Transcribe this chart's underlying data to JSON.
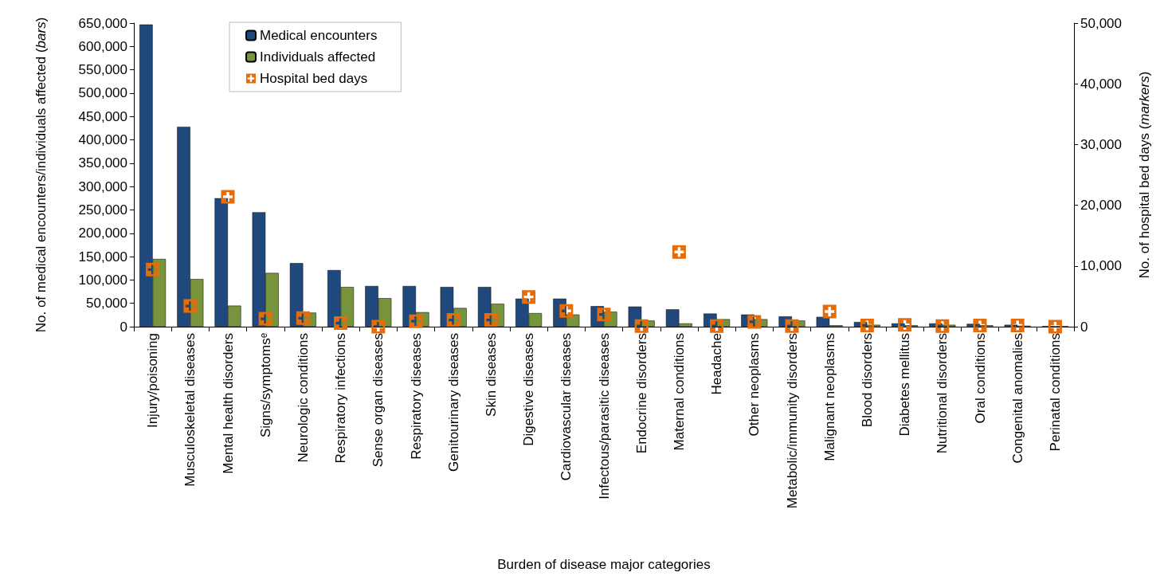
{
  "chart_data": {
    "type": "bar",
    "xlabel": "Burden of disease major categories",
    "ylabel": "No. of medical encounters/individuals affected (bars)",
    "y2label": "No. of hospital bed days (markers)",
    "categories": [
      "Injury/poisoning",
      "Musculoskeletal diseases",
      "Mental health disorders",
      "Signs/symptomsᵉ",
      "Neurologic conditions",
      "Respiratory infections",
      "Sense organ diseases",
      "Respiratory diseases",
      "Genitourinary diseases",
      "Skin diseases",
      "Digestive diseases",
      "Cardiovascular diseases",
      "Infectous/parasitic diseases",
      "Endocrine disorders",
      "Maternal conditions",
      "Headache",
      "Other neoplasms",
      "Metabolic/immunity disorders",
      "Malignant neoplasms",
      "Blood disorders",
      "Diabetes mellitus",
      "Nutritional disorders",
      "Oral conditions",
      "Congenital anomalies",
      "Perinatal conditions"
    ],
    "series": [
      {
        "name": "Medical encounters",
        "color": "#1f497d",
        "values": [
          647000,
          428000,
          275000,
          245000,
          136000,
          121000,
          87000,
          87000,
          85000,
          85000,
          60000,
          60000,
          44000,
          43000,
          37000,
          28000,
          26000,
          22000,
          21000,
          10000,
          7000,
          7000,
          6000,
          4000,
          1000
        ]
      },
      {
        "name": "Individuals affected",
        "color": "#77933c",
        "values": [
          145000,
          102000,
          45000,
          115000,
          30000,
          85000,
          61000,
          31000,
          40000,
          49000,
          29000,
          26000,
          32000,
          13000,
          7000,
          16000,
          16000,
          13000,
          3000,
          4000,
          3000,
          4000,
          3000,
          2000,
          1000
        ]
      },
      {
        "name": "Hospital bed days",
        "type": "scatter",
        "axis": "y2",
        "color": "#e46c0a",
        "values": [
          9400,
          3400,
          21400,
          1300,
          1400,
          600,
          0,
          900,
          1100,
          1100,
          4900,
          2600,
          2000,
          100,
          12300,
          100,
          800,
          100,
          2500,
          200,
          300,
          100,
          200,
          200,
          0
        ]
      }
    ],
    "ylim": [
      0,
      650000
    ],
    "yticks": [
      0,
      {
        "value": 50000,
        "label": "50,000"
      },
      {
        "value": 100000,
        "label": "100,000"
      },
      {
        "value": 150000,
        "label": "150,000"
      },
      {
        "value": 200000,
        "label": "200,000"
      },
      {
        "value": 250000,
        "label": "250,000"
      },
      {
        "value": 300000,
        "label": "300,000"
      },
      {
        "value": 350000,
        "label": "350,000"
      },
      {
        "value": 400000,
        "label": "400,000"
      },
      {
        "value": 450000,
        "label": "450,000"
      },
      {
        "value": 500000,
        "label": "500,000"
      },
      {
        "value": 550000,
        "label": "550,000"
      },
      {
        "value": 600000,
        "label": "600,000"
      },
      {
        "value": 650000,
        "label": "650,000"
      }
    ],
    "y2lim": [
      0,
      50000
    ],
    "y2ticks": [
      0,
      {
        "value": 10000,
        "label": "10,000"
      },
      {
        "value": 20000,
        "label": "20,000"
      },
      {
        "value": 30000,
        "label": "30,000"
      },
      {
        "value": 40000,
        "label": "40,000"
      },
      {
        "value": 50000,
        "label": "50,000"
      }
    ],
    "grid": false,
    "legend": "top left",
    "marker": "square"
  }
}
